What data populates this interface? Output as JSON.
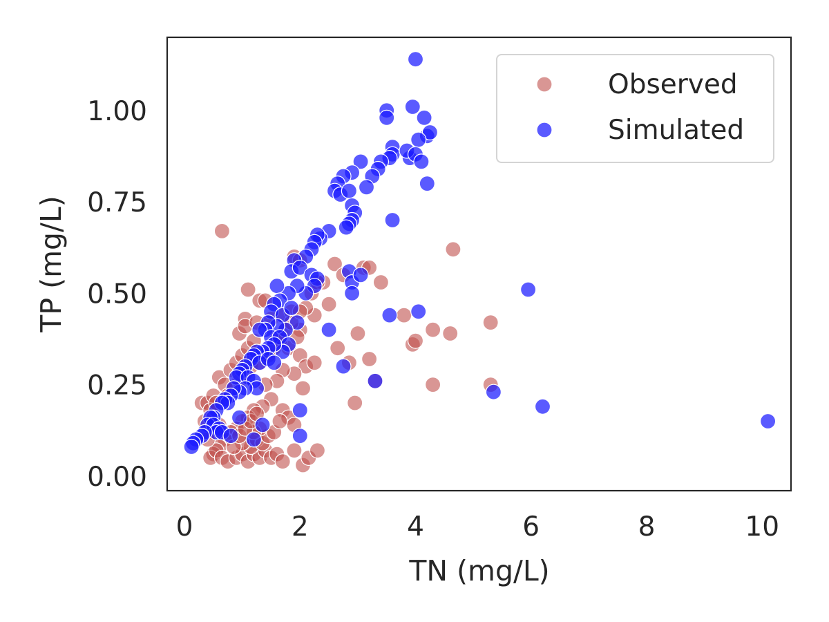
{
  "chart_data": {
    "type": "scatter",
    "title": "",
    "xlabel": "TN (mg/L)",
    "ylabel": "TP (mg/L)",
    "xlim": [
      -0.3,
      10.5
    ],
    "ylim": [
      -0.04,
      1.2
    ],
    "xticks": [
      0,
      2,
      4,
      6,
      8,
      10
    ],
    "yticks": [
      0.0,
      0.25,
      0.5,
      0.75,
      1.0
    ],
    "xtick_labels": [
      "0",
      "2",
      "4",
      "6",
      "8",
      "10"
    ],
    "ytick_labels": [
      "0.00",
      "0.25",
      "0.50",
      "0.75",
      "1.00"
    ],
    "grid": false,
    "legend_position": "top-right",
    "series": [
      {
        "name": "Observed",
        "color": "#c0504d",
        "points": [
          [
            0.65,
            0.67
          ],
          [
            1.1,
            0.51
          ],
          [
            1.05,
            0.43
          ],
          [
            1.3,
            0.48
          ],
          [
            1.4,
            0.48
          ],
          [
            1.9,
            0.6
          ],
          [
            2.0,
            0.59
          ],
          [
            2.4,
            0.53
          ],
          [
            2.6,
            0.58
          ],
          [
            2.75,
            0.55
          ],
          [
            3.1,
            0.57
          ],
          [
            3.2,
            0.57
          ],
          [
            3.4,
            0.53
          ],
          [
            4.65,
            0.62
          ],
          [
            2.25,
            0.44
          ],
          [
            2.5,
            0.47
          ],
          [
            2.65,
            0.35
          ],
          [
            2.85,
            0.31
          ],
          [
            3.0,
            0.39
          ],
          [
            3.2,
            0.32
          ],
          [
            3.3,
            0.26
          ],
          [
            2.95,
            0.2
          ],
          [
            3.8,
            0.44
          ],
          [
            3.95,
            0.36
          ],
          [
            4.0,
            0.37
          ],
          [
            4.3,
            0.4
          ],
          [
            4.6,
            0.39
          ],
          [
            4.3,
            0.25
          ],
          [
            5.3,
            0.42
          ],
          [
            5.3,
            0.25
          ],
          [
            0.3,
            0.2
          ],
          [
            0.4,
            0.2
          ],
          [
            0.5,
            0.22
          ],
          [
            0.6,
            0.27
          ],
          [
            0.7,
            0.25
          ],
          [
            0.8,
            0.29
          ],
          [
            0.9,
            0.31
          ],
          [
            1.0,
            0.33
          ],
          [
            1.1,
            0.35
          ],
          [
            1.2,
            0.37
          ],
          [
            0.95,
            0.39
          ],
          [
            1.05,
            0.41
          ],
          [
            1.25,
            0.42
          ],
          [
            1.5,
            0.43
          ],
          [
            1.7,
            0.44
          ],
          [
            1.85,
            0.45
          ],
          [
            2.1,
            0.46
          ],
          [
            2.2,
            0.5
          ],
          [
            2.3,
            0.53
          ],
          [
            2.0,
            0.4
          ],
          [
            1.6,
            0.38
          ],
          [
            1.8,
            0.35
          ],
          [
            2.0,
            0.33
          ],
          [
            2.1,
            0.3
          ],
          [
            2.25,
            0.31
          ],
          [
            1.9,
            0.28
          ],
          [
            1.7,
            0.29
          ],
          [
            1.6,
            0.26
          ],
          [
            1.4,
            0.25
          ],
          [
            1.5,
            0.21
          ],
          [
            1.7,
            0.18
          ],
          [
            1.8,
            0.16
          ],
          [
            1.9,
            0.14
          ],
          [
            2.05,
            0.24
          ],
          [
            1.35,
            0.19
          ],
          [
            1.2,
            0.18
          ],
          [
            1.1,
            0.16
          ],
          [
            1.0,
            0.15
          ],
          [
            0.9,
            0.13
          ],
          [
            0.8,
            0.12
          ],
          [
            0.7,
            0.1
          ],
          [
            0.6,
            0.08
          ],
          [
            0.5,
            0.06
          ],
          [
            0.45,
            0.05
          ],
          [
            0.55,
            0.07
          ],
          [
            0.65,
            0.05
          ],
          [
            0.75,
            0.04
          ],
          [
            0.9,
            0.05
          ],
          [
            1.0,
            0.06
          ],
          [
            1.1,
            0.04
          ],
          [
            1.2,
            0.06
          ],
          [
            1.3,
            0.05
          ],
          [
            1.4,
            0.07
          ],
          [
            1.5,
            0.05
          ],
          [
            1.6,
            0.06
          ],
          [
            1.7,
            0.04
          ],
          [
            1.9,
            0.07
          ],
          [
            2.05,
            0.03
          ],
          [
            2.15,
            0.05
          ],
          [
            2.3,
            0.07
          ],
          [
            1.15,
            0.08
          ],
          [
            1.25,
            0.1
          ],
          [
            1.35,
            0.09
          ],
          [
            1.45,
            0.11
          ],
          [
            1.55,
            0.12
          ],
          [
            1.65,
            0.15
          ],
          [
            1.3,
            0.13
          ],
          [
            1.2,
            0.12
          ],
          [
            1.0,
            0.09
          ],
          [
            0.85,
            0.08
          ],
          [
            0.95,
            0.11
          ],
          [
            1.05,
            0.13
          ],
          [
            1.15,
            0.15
          ],
          [
            1.25,
            0.17
          ],
          [
            0.6,
            0.14
          ],
          [
            0.5,
            0.12
          ],
          [
            0.4,
            0.1
          ],
          [
            0.35,
            0.15
          ],
          [
            0.45,
            0.18
          ],
          [
            0.55,
            0.2
          ],
          [
            0.75,
            0.22
          ],
          [
            0.85,
            0.24
          ],
          [
            0.95,
            0.26
          ],
          [
            1.05,
            0.28
          ],
          [
            1.15,
            0.3
          ],
          [
            1.3,
            0.31
          ],
          [
            1.45,
            0.33
          ],
          [
            1.55,
            0.35
          ],
          [
            1.65,
            0.37
          ],
          [
            1.75,
            0.4
          ],
          [
            1.85,
            0.42
          ],
          [
            1.95,
            0.38
          ],
          [
            2.0,
            0.45
          ]
        ]
      },
      {
        "name": "Simulated",
        "color": "#1a1aff",
        "points": [
          [
            4.0,
            1.14
          ],
          [
            3.5,
            1.0
          ],
          [
            3.5,
            0.98
          ],
          [
            3.95,
            1.01
          ],
          [
            4.15,
            0.98
          ],
          [
            4.2,
            0.93
          ],
          [
            4.25,
            0.94
          ],
          [
            4.05,
            0.92
          ],
          [
            3.6,
            0.9
          ],
          [
            3.6,
            0.88
          ],
          [
            3.55,
            0.87
          ],
          [
            3.9,
            0.87
          ],
          [
            3.85,
            0.89
          ],
          [
            4.0,
            0.88
          ],
          [
            4.1,
            0.86
          ],
          [
            4.2,
            0.8
          ],
          [
            3.4,
            0.86
          ],
          [
            3.35,
            0.84
          ],
          [
            3.25,
            0.82
          ],
          [
            3.15,
            0.79
          ],
          [
            3.05,
            0.86
          ],
          [
            2.9,
            0.83
          ],
          [
            2.75,
            0.82
          ],
          [
            2.65,
            0.8
          ],
          [
            2.6,
            0.78
          ],
          [
            2.7,
            0.77
          ],
          [
            2.85,
            0.78
          ],
          [
            2.9,
            0.74
          ],
          [
            2.95,
            0.72
          ],
          [
            2.9,
            0.7
          ],
          [
            2.85,
            0.69
          ],
          [
            2.8,
            0.68
          ],
          [
            2.5,
            0.67
          ],
          [
            2.35,
            0.65
          ],
          [
            2.3,
            0.66
          ],
          [
            2.25,
            0.64
          ],
          [
            2.2,
            0.62
          ],
          [
            2.1,
            0.6
          ],
          [
            1.9,
            0.59
          ],
          [
            1.85,
            0.56
          ],
          [
            2.0,
            0.57
          ],
          [
            2.2,
            0.55
          ],
          [
            2.3,
            0.54
          ],
          [
            2.25,
            0.52
          ],
          [
            2.1,
            0.5
          ],
          [
            1.95,
            0.52
          ],
          [
            1.8,
            0.5
          ],
          [
            1.6,
            0.52
          ],
          [
            1.65,
            0.48
          ],
          [
            1.55,
            0.47
          ],
          [
            1.5,
            0.45
          ],
          [
            1.7,
            0.44
          ],
          [
            1.85,
            0.46
          ],
          [
            1.95,
            0.42
          ],
          [
            1.75,
            0.4
          ],
          [
            1.6,
            0.41
          ],
          [
            1.45,
            0.42
          ],
          [
            1.4,
            0.4
          ],
          [
            1.3,
            0.4
          ],
          [
            1.5,
            0.38
          ],
          [
            1.65,
            0.38
          ],
          [
            1.8,
            0.36
          ],
          [
            1.7,
            0.34
          ],
          [
            1.55,
            0.36
          ],
          [
            1.45,
            0.35
          ],
          [
            1.35,
            0.34
          ],
          [
            1.25,
            0.34
          ],
          [
            1.2,
            0.33
          ],
          [
            1.15,
            0.32
          ],
          [
            1.3,
            0.31
          ],
          [
            1.45,
            0.32
          ],
          [
            1.55,
            0.31
          ],
          [
            1.05,
            0.3
          ],
          [
            1.0,
            0.29
          ],
          [
            0.95,
            0.28
          ],
          [
            0.9,
            0.27
          ],
          [
            1.1,
            0.27
          ],
          [
            1.2,
            0.26
          ],
          [
            1.25,
            0.24
          ],
          [
            1.05,
            0.24
          ],
          [
            0.95,
            0.23
          ],
          [
            0.85,
            0.24
          ],
          [
            0.8,
            0.22
          ],
          [
            0.7,
            0.21
          ],
          [
            0.75,
            0.2
          ],
          [
            0.65,
            0.2
          ],
          [
            0.55,
            0.18
          ],
          [
            0.5,
            0.16
          ],
          [
            0.45,
            0.16
          ],
          [
            0.4,
            0.14
          ],
          [
            0.5,
            0.14
          ],
          [
            0.6,
            0.13
          ],
          [
            0.55,
            0.12
          ],
          [
            0.35,
            0.12
          ],
          [
            0.3,
            0.11
          ],
          [
            0.2,
            0.1
          ],
          [
            0.15,
            0.09
          ],
          [
            0.12,
            0.08
          ],
          [
            0.65,
            0.12
          ],
          [
            0.8,
            0.11
          ],
          [
            0.95,
            0.16
          ],
          [
            1.2,
            0.1
          ],
          [
            1.35,
            0.14
          ],
          [
            2.0,
            0.18
          ],
          [
            2.0,
            0.11
          ],
          [
            2.5,
            0.4
          ],
          [
            2.75,
            0.3
          ],
          [
            2.85,
            0.56
          ],
          [
            2.9,
            0.53
          ],
          [
            2.9,
            0.5
          ],
          [
            3.05,
            0.55
          ],
          [
            3.3,
            0.26
          ],
          [
            3.55,
            0.44
          ],
          [
            3.6,
            0.7
          ],
          [
            4.05,
            0.45
          ],
          [
            5.35,
            0.23
          ],
          [
            5.95,
            0.51
          ],
          [
            6.2,
            0.19
          ],
          [
            10.1,
            0.15
          ]
        ]
      }
    ]
  }
}
